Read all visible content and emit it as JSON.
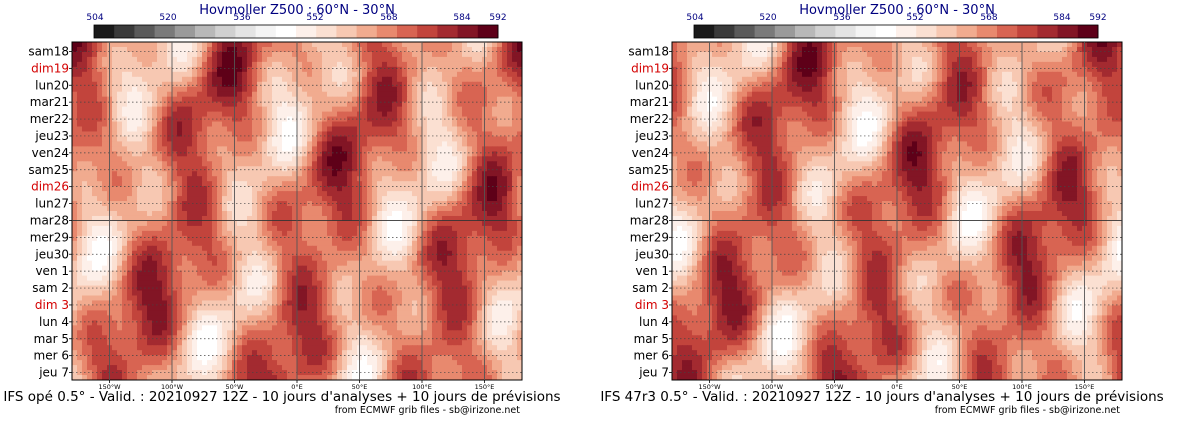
{
  "chart_data": [
    {
      "type": "heatmap",
      "title": "Hovmoller Z500 : 60°N - 30°N",
      "model": "IFS opé 0.5°",
      "footer": "IFS opé 0.5° - Valid. : 20210927 12Z - 10 jours d'analyses + 10 jours de prévisions",
      "credit": "from ECMWF grib files - sb@irizone.net",
      "colorbar_ticks": [
        "504",
        "520",
        "536",
        "552",
        "568",
        "584",
        "592"
      ],
      "colorbar_colors": [
        "#1a1a1a",
        "#3a3a3a",
        "#5a5a5a",
        "#7a7a7a",
        "#9a9a9a",
        "#b8b8b8",
        "#d0d0d0",
        "#e4e4e4",
        "#f4f4f4",
        "#ffffff",
        "#fdf0ea",
        "#fbe0d2",
        "#f7c8b2",
        "#f1ab8f",
        "#e8896e",
        "#d86452",
        "#c2443c",
        "#a32a30",
        "#821525",
        "#5e0018"
      ],
      "y_labels": [
        {
          "text": "sam18",
          "weekend": false
        },
        {
          "text": "dim19",
          "weekend": true
        },
        {
          "text": "lun20",
          "weekend": false
        },
        {
          "text": "mar21",
          "weekend": false
        },
        {
          "text": "mer22",
          "weekend": false
        },
        {
          "text": "jeu23",
          "weekend": false
        },
        {
          "text": "ven24",
          "weekend": false
        },
        {
          "text": "sam25",
          "weekend": false
        },
        {
          "text": "dim26",
          "weekend": true
        },
        {
          "text": "lun27",
          "weekend": false
        },
        {
          "text": "mar28",
          "weekend": false
        },
        {
          "text": "mer29",
          "weekend": false
        },
        {
          "text": "jeu30",
          "weekend": false
        },
        {
          "text": "ven 1",
          "weekend": false
        },
        {
          "text": "sam 2",
          "weekend": false
        },
        {
          "text": "dim 3",
          "weekend": true
        },
        {
          "text": "lun 4",
          "weekend": false
        },
        {
          "text": "mar 5",
          "weekend": false
        },
        {
          "text": "mer 6",
          "weekend": false
        },
        {
          "text": "jeu 7",
          "weekend": false
        }
      ],
      "x_labels": [
        "150°W",
        "100°W",
        "50°W",
        "0°E",
        "50°E",
        "100°E",
        "150°E"
      ],
      "x_values": [
        -150,
        -100,
        -50,
        0,
        50,
        100,
        150
      ],
      "xlim": [
        -180,
        180
      ],
      "analysis_forecast_split_day": "mar28",
      "grid": true,
      "seed": 1
    },
    {
      "type": "heatmap",
      "title": "Hovmoller Z500 : 60°N - 30°N",
      "model": "IFS 47r3 0.5°",
      "footer": "IFS 47r3 0.5° - Valid. : 20210927 12Z - 10 jours d'analyses + 10 jours de prévisions",
      "credit": "from ECMWF grib files - sb@irizone.net",
      "colorbar_ticks": [
        "504",
        "520",
        "536",
        "552",
        "568",
        "584",
        "592"
      ],
      "colorbar_colors": [
        "#1a1a1a",
        "#3a3a3a",
        "#5a5a5a",
        "#7a7a7a",
        "#9a9a9a",
        "#b8b8b8",
        "#d0d0d0",
        "#e4e4e4",
        "#f4f4f4",
        "#ffffff",
        "#fdf0ea",
        "#fbe0d2",
        "#f7c8b2",
        "#f1ab8f",
        "#e8896e",
        "#d86452",
        "#c2443c",
        "#a32a30",
        "#821525",
        "#5e0018"
      ],
      "y_labels": [
        {
          "text": "sam18",
          "weekend": false
        },
        {
          "text": "dim19",
          "weekend": true
        },
        {
          "text": "lun20",
          "weekend": false
        },
        {
          "text": "mar21",
          "weekend": false
        },
        {
          "text": "mer22",
          "weekend": false
        },
        {
          "text": "jeu23",
          "weekend": false
        },
        {
          "text": "ven24",
          "weekend": false
        },
        {
          "text": "sam25",
          "weekend": false
        },
        {
          "text": "dim26",
          "weekend": true
        },
        {
          "text": "lun27",
          "weekend": false
        },
        {
          "text": "mar28",
          "weekend": false
        },
        {
          "text": "mer29",
          "weekend": false
        },
        {
          "text": "jeu30",
          "weekend": false
        },
        {
          "text": "ven 1",
          "weekend": false
        },
        {
          "text": "sam 2",
          "weekend": false
        },
        {
          "text": "dim 3",
          "weekend": true
        },
        {
          "text": "lun 4",
          "weekend": false
        },
        {
          "text": "mar 5",
          "weekend": false
        },
        {
          "text": "mer 6",
          "weekend": false
        },
        {
          "text": "jeu 7",
          "weekend": false
        }
      ],
      "x_labels": [
        "150°W",
        "100°W",
        "50°W",
        "0°E",
        "50°E",
        "100°E",
        "150°E"
      ],
      "x_values": [
        -150,
        -100,
        -50,
        0,
        50,
        100,
        150
      ],
      "xlim": [
        -180,
        180
      ],
      "analysis_forecast_split_day": "mar28",
      "grid": true,
      "seed": 2
    }
  ]
}
